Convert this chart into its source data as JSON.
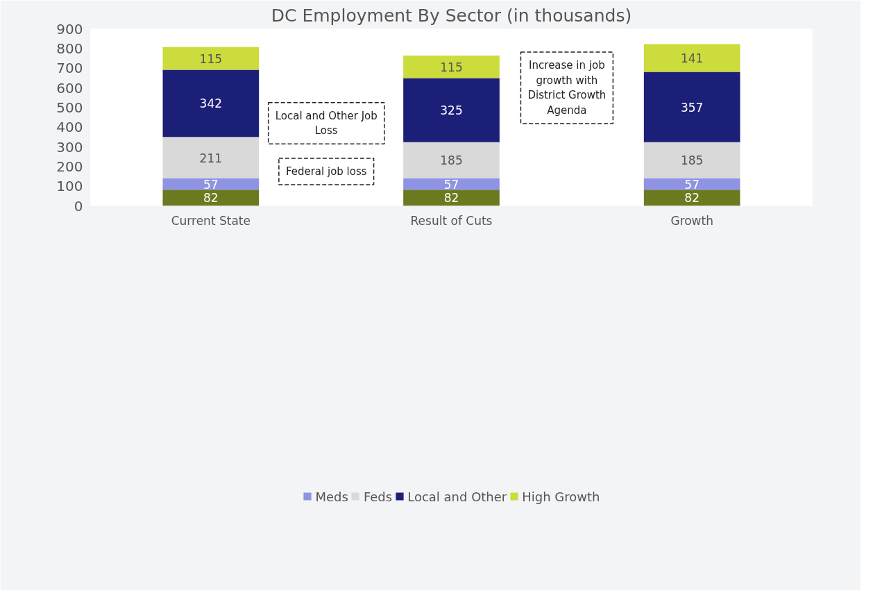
{
  "chart_data": {
    "type": "bar",
    "title": "DC Employment By Sector (in thousands)",
    "categories": [
      "Current State",
      "Result of Cuts",
      "Growth"
    ],
    "stacked": true,
    "series": [
      {
        "color": "#6b7a1e",
        "values": [
          82,
          82,
          82
        ]
      },
      {
        "name": "Meds",
        "color": "#8f93e4",
        "values": [
          57,
          57,
          57
        ]
      },
      {
        "name": "Feds",
        "color": "#d9d9d9",
        "values": [
          211,
          185,
          185
        ]
      },
      {
        "name": "Local and Other",
        "color": "#1c1f78",
        "values": [
          342,
          325,
          357
        ]
      },
      {
        "name": "High Growth",
        "color": "#cbdc3c",
        "values": [
          115,
          115,
          141
        ]
      }
    ],
    "ylim": [
      0,
      900
    ],
    "yticks": [
      0,
      100,
      200,
      300,
      400,
      500,
      600,
      700,
      800,
      900
    ],
    "data_labels": true,
    "legend": "bottom",
    "grid": false,
    "annotations": [
      "Local and Other Job Loss",
      "Federal job loss",
      "Increase in job growth with District Growth Agenda"
    ]
  }
}
